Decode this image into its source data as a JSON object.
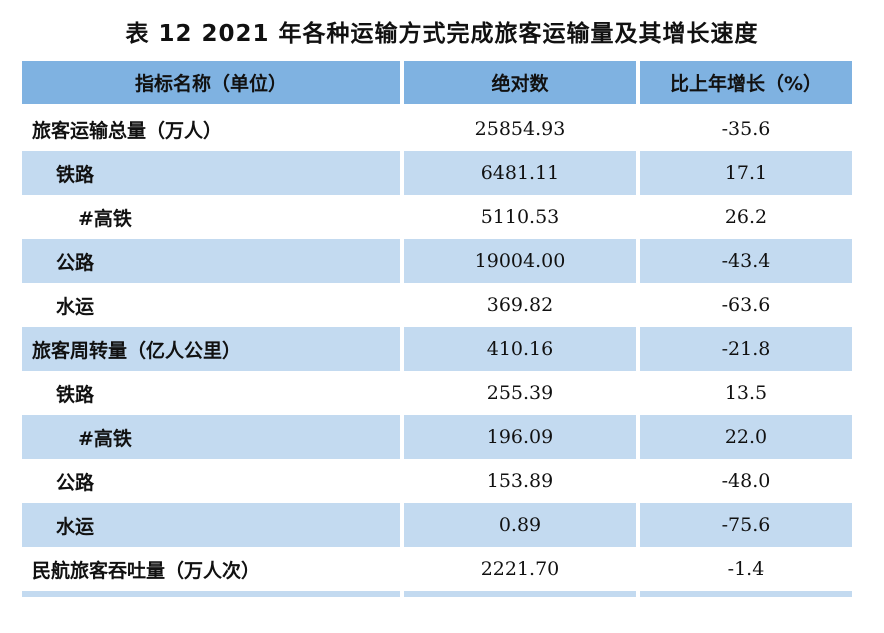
{
  "title": "表 12   2021 年各种运输方式完成旅客运输量及其增长速度",
  "header": {
    "col1": "指标名称（单位）",
    "col2": "绝对数",
    "col3": "比上年增长（%）"
  },
  "rows": [
    {
      "name": "旅客运输总量（万人）",
      "value": "25854.93",
      "growth": "-35.6"
    },
    {
      "name": "铁路",
      "value": "6481.11",
      "growth": "17.1"
    },
    {
      "name": "#高铁",
      "value": "5110.53",
      "growth": "26.2"
    },
    {
      "name": "公路",
      "value": "19004.00",
      "growth": "-43.4"
    },
    {
      "name": "水运",
      "value": "369.82",
      "growth": "-63.6"
    },
    {
      "name": "旅客周转量（亿人公里）",
      "value": "410.16",
      "growth": "-21.8"
    },
    {
      "name": "铁路",
      "value": "255.39",
      "growth": "13.5"
    },
    {
      "name": "#高铁",
      "value": "196.09",
      "growth": "22.0"
    },
    {
      "name": "公路",
      "value": "153.89",
      "growth": "-48.0"
    },
    {
      "name": "水运",
      "value": "0.89",
      "growth": "-75.6"
    },
    {
      "name": "民航旅客吞吐量（万人次）",
      "value": "2221.70",
      "growth": "-1.4"
    }
  ],
  "colors": {
    "header_bg": "#7fb2e1",
    "shaded_bg": "#c3daf0"
  }
}
